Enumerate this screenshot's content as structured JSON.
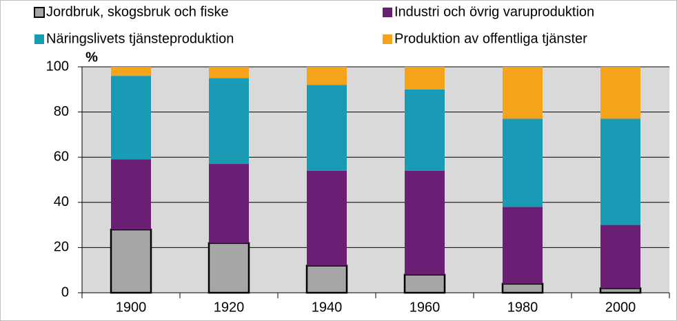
{
  "chart_data": {
    "type": "stacked_bar",
    "y_label": "%",
    "categories": [
      "1900",
      "1920",
      "1940",
      "1960",
      "1980",
      "2000"
    ],
    "series": [
      {
        "name": "Jordbruk, skogsbruk och fiske",
        "color": "#a6a6a6",
        "values": [
          28,
          22,
          12,
          8,
          4,
          2
        ]
      },
      {
        "name": "Industri och övrig varuproduktion",
        "color": "#6b1f74",
        "values": [
          31,
          35,
          42,
          46,
          34,
          28
        ]
      },
      {
        "name": "Näringslivets tjänsteproduktion",
        "color": "#1a9bb5",
        "values": [
          37,
          38,
          38,
          36,
          39,
          47
        ]
      },
      {
        "name": "Produktion av offentliga tjänster",
        "color": "#f5a31a",
        "values": [
          4,
          5,
          8,
          10,
          23,
          23
        ]
      }
    ],
    "ylim": [
      0,
      100
    ],
    "yticks": [
      0,
      20,
      40,
      60,
      80,
      100
    ],
    "grid": true
  }
}
